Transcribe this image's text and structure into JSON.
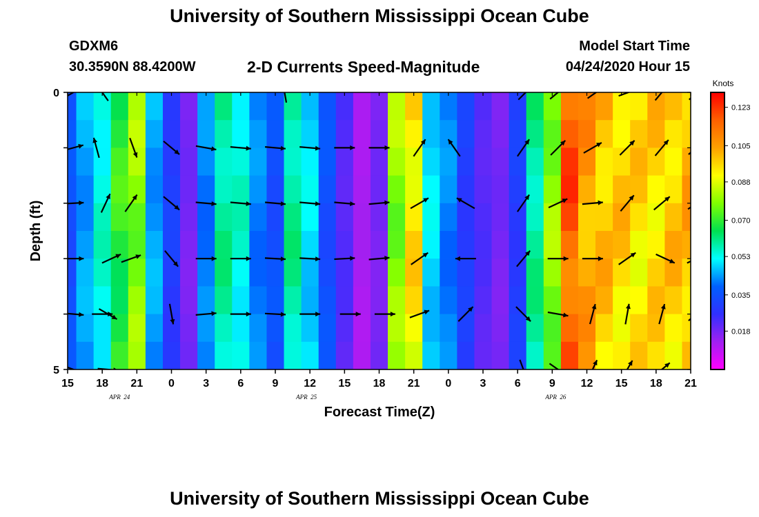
{
  "page": {
    "title_top": "University of Southern Mississippi Ocean Cube",
    "title_bottom": "University of Southern Mississippi Ocean Cube",
    "station": "GDXM6",
    "coordinates": "30.3590N 88.4200W",
    "model_start_label": "Model Start Time",
    "model_start_value": "04/24/2020 Hour 15"
  },
  "colors": {
    "scale": [
      "#ff00ff",
      "#a020f0",
      "#3030ff",
      "#0060ff",
      "#00ffff",
      "#00e050",
      "#80ff00",
      "#ffff00",
      "#ffa000",
      "#ff6000",
      "#ff0000"
    ]
  },
  "chart_data": {
    "type": "heatmap",
    "title": "2-D Currents Speed-Magnitude",
    "xlabel": "Forecast Time(Z)",
    "ylabel": "Depth (ft)",
    "x_ticks": [
      "15",
      "18",
      "21",
      "0",
      "3",
      "6",
      "9",
      "12",
      "15",
      "18",
      "21",
      "0",
      "3",
      "6",
      "9",
      "12",
      "15",
      "18",
      "21"
    ],
    "date_labels": [
      {
        "label": "APR 24",
        "x_index": 1.5
      },
      {
        "label": "APR 25",
        "x_index": 6.9
      },
      {
        "label": "APR 26",
        "x_index": 14.1
      }
    ],
    "y_ticks": [
      "0",
      "5"
    ],
    "ylim": [
      0,
      5
    ],
    "colorbar": {
      "unit": "Knots",
      "min": 0.0,
      "max": 0.13,
      "tick_labels": [
        "0.123",
        "0.105",
        "0.088",
        "0.070",
        "0.053",
        "0.035",
        "0.018"
      ],
      "tick_values": [
        0.123,
        0.105,
        0.088,
        0.07,
        0.053,
        0.035,
        0.018
      ]
    },
    "time_step_hours": 3,
    "speed_by_time": [
      0.035,
      0.045,
      0.055,
      0.07,
      0.08,
      0.045,
      0.03,
      0.018,
      0.042,
      0.06,
      0.055,
      0.042,
      0.035,
      0.06,
      0.05,
      0.035,
      0.022,
      0.012,
      0.018,
      0.08,
      0.095,
      0.05,
      0.042,
      0.03,
      0.022,
      0.018,
      0.03,
      0.06,
      0.08,
      0.118,
      0.105,
      0.1,
      0.098,
      0.096,
      0.097,
      0.099,
      0.102
    ],
    "vectors": [
      {
        "h": 0.5,
        "depth_level": 0,
        "angle_deg": 30
      },
      {
        "h": 3,
        "depth_level": 0,
        "angle_deg": 125
      },
      {
        "h": 18.8,
        "depth_level": 0,
        "angle_deg": 100
      },
      {
        "h": 39.7,
        "depth_level": 0,
        "angle_deg": 45
      },
      {
        "h": 42.5,
        "depth_level": 0,
        "angle_deg": 40
      },
      {
        "h": 45.8,
        "depth_level": 0,
        "angle_deg": 35
      },
      {
        "h": 48.6,
        "depth_level": 0,
        "angle_deg": 20
      },
      {
        "h": 51.5,
        "depth_level": 0,
        "angle_deg": 50
      },
      {
        "h": 54.5,
        "depth_level": 0,
        "angle_deg": 45
      },
      {
        "h": 0.5,
        "depth_level": 1,
        "angle_deg": 15
      },
      {
        "h": 2.5,
        "depth_level": 1,
        "angle_deg": 105
      },
      {
        "h": 5.7,
        "depth_level": 1,
        "angle_deg": -70
      },
      {
        "h": 9,
        "depth_level": 1,
        "angle_deg": -40
      },
      {
        "h": 12,
        "depth_level": 1,
        "angle_deg": -10
      },
      {
        "h": 15,
        "depth_level": 1,
        "angle_deg": -5
      },
      {
        "h": 18,
        "depth_level": 1,
        "angle_deg": -5
      },
      {
        "h": 21,
        "depth_level": 1,
        "angle_deg": -5
      },
      {
        "h": 24,
        "depth_level": 1,
        "angle_deg": 0
      },
      {
        "h": 27,
        "depth_level": 1,
        "angle_deg": 0
      },
      {
        "h": 30.5,
        "depth_level": 1,
        "angle_deg": 55
      },
      {
        "h": 33.5,
        "depth_level": 1,
        "angle_deg": 125
      },
      {
        "h": 39.5,
        "depth_level": 1,
        "angle_deg": 55
      },
      {
        "h": 42.5,
        "depth_level": 1,
        "angle_deg": 45
      },
      {
        "h": 45.5,
        "depth_level": 1,
        "angle_deg": 30
      },
      {
        "h": 48.5,
        "depth_level": 1,
        "angle_deg": 45
      },
      {
        "h": 51.5,
        "depth_level": 1,
        "angle_deg": 50
      },
      {
        "h": 54.5,
        "depth_level": 1,
        "angle_deg": 40
      },
      {
        "h": 0.5,
        "depth_level": 2,
        "angle_deg": 3
      },
      {
        "h": 3.3,
        "depth_level": 2,
        "angle_deg": 65
      },
      {
        "h": 5.5,
        "depth_level": 2,
        "angle_deg": 55
      },
      {
        "h": 9,
        "depth_level": 2,
        "angle_deg": -40
      },
      {
        "h": 12,
        "depth_level": 2,
        "angle_deg": -5
      },
      {
        "h": 15,
        "depth_level": 2,
        "angle_deg": -5
      },
      {
        "h": 18,
        "depth_level": 2,
        "angle_deg": -5
      },
      {
        "h": 21,
        "depth_level": 2,
        "angle_deg": -5
      },
      {
        "h": 24,
        "depth_level": 2,
        "angle_deg": -5
      },
      {
        "h": 27,
        "depth_level": 2,
        "angle_deg": 5
      },
      {
        "h": 30.5,
        "depth_level": 2,
        "angle_deg": 30
      },
      {
        "h": 34.5,
        "depth_level": 2,
        "angle_deg": 150
      },
      {
        "h": 39.5,
        "depth_level": 2,
        "angle_deg": 55
      },
      {
        "h": 42.5,
        "depth_level": 2,
        "angle_deg": 25
      },
      {
        "h": 45.5,
        "depth_level": 2,
        "angle_deg": 5
      },
      {
        "h": 48.5,
        "depth_level": 2,
        "angle_deg": 50
      },
      {
        "h": 51.5,
        "depth_level": 2,
        "angle_deg": 40
      },
      {
        "h": 54.5,
        "depth_level": 2,
        "angle_deg": 35
      },
      {
        "h": 0.5,
        "depth_level": 3,
        "angle_deg": 0
      },
      {
        "h": 3.8,
        "depth_level": 3,
        "angle_deg": 25
      },
      {
        "h": 5.5,
        "depth_level": 3,
        "angle_deg": 20
      },
      {
        "h": 9,
        "depth_level": 3,
        "angle_deg": -50
      },
      {
        "h": 12,
        "depth_level": 3,
        "angle_deg": 0
      },
      {
        "h": 15,
        "depth_level": 3,
        "angle_deg": 0
      },
      {
        "h": 18,
        "depth_level": 3,
        "angle_deg": -3
      },
      {
        "h": 21,
        "depth_level": 3,
        "angle_deg": -3
      },
      {
        "h": 24,
        "depth_level": 3,
        "angle_deg": 3
      },
      {
        "h": 27,
        "depth_level": 3,
        "angle_deg": 5
      },
      {
        "h": 30.5,
        "depth_level": 3,
        "angle_deg": 35
      },
      {
        "h": 34.5,
        "depth_level": 3,
        "angle_deg": 180
      },
      {
        "h": 39.5,
        "depth_level": 3,
        "angle_deg": 50
      },
      {
        "h": 42.5,
        "depth_level": 3,
        "angle_deg": 0
      },
      {
        "h": 45.5,
        "depth_level": 3,
        "angle_deg": 0
      },
      {
        "h": 48.5,
        "depth_level": 3,
        "angle_deg": 35
      },
      {
        "h": 51.8,
        "depth_level": 3,
        "angle_deg": -25
      },
      {
        "h": 54.5,
        "depth_level": 3,
        "angle_deg": 25
      },
      {
        "h": 0.5,
        "depth_level": 4,
        "angle_deg": -5
      },
      {
        "h": 3,
        "depth_level": 4,
        "angle_deg": 0
      },
      {
        "h": 3.5,
        "depth_level": 4,
        "angle_deg": -30
      },
      {
        "h": 9,
        "depth_level": 4,
        "angle_deg": -80
      },
      {
        "h": 12,
        "depth_level": 4,
        "angle_deg": 5
      },
      {
        "h": 15,
        "depth_level": 4,
        "angle_deg": 0
      },
      {
        "h": 18,
        "depth_level": 4,
        "angle_deg": -3
      },
      {
        "h": 21,
        "depth_level": 4,
        "angle_deg": 0
      },
      {
        "h": 24.5,
        "depth_level": 4,
        "angle_deg": 0
      },
      {
        "h": 27.5,
        "depth_level": 4,
        "angle_deg": 0
      },
      {
        "h": 30.5,
        "depth_level": 4,
        "angle_deg": 20
      },
      {
        "h": 34.5,
        "depth_level": 4,
        "angle_deg": 45
      },
      {
        "h": 39.5,
        "depth_level": 4,
        "angle_deg": -45
      },
      {
        "h": 42.5,
        "depth_level": 4,
        "angle_deg": -10
      },
      {
        "h": 45.5,
        "depth_level": 4,
        "angle_deg": 75
      },
      {
        "h": 48.5,
        "depth_level": 4,
        "angle_deg": 80
      },
      {
        "h": 51.5,
        "depth_level": 4,
        "angle_deg": 75
      },
      {
        "h": 54.5,
        "depth_level": 4,
        "angle_deg": 40
      },
      {
        "h": 0.5,
        "depth_level": 5,
        "angle_deg": -20
      },
      {
        "h": 3.5,
        "depth_level": 5,
        "angle_deg": -5
      },
      {
        "h": 39.5,
        "depth_level": 5,
        "angle_deg": -70
      },
      {
        "h": 42.5,
        "depth_level": 5,
        "angle_deg": -35
      },
      {
        "h": 45.5,
        "depth_level": 5,
        "angle_deg": 65
      },
      {
        "h": 48.5,
        "depth_level": 5,
        "angle_deg": 60
      },
      {
        "h": 51.5,
        "depth_level": 5,
        "angle_deg": 40
      }
    ]
  }
}
